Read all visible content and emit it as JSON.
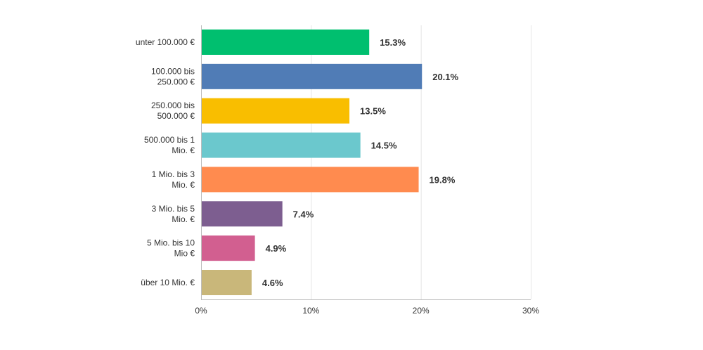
{
  "chart_data": {
    "type": "bar",
    "orientation": "horizontal",
    "categories": [
      [
        "unter 100.000 €"
      ],
      [
        "100.000 bis",
        "250.000 €"
      ],
      [
        "250.000 bis",
        "500.000 €"
      ],
      [
        "500.000 bis 1",
        "Mio. €"
      ],
      [
        "1 Mio. bis 3",
        "Mio. €"
      ],
      [
        "3 Mio. bis 5",
        "Mio. €"
      ],
      [
        "5 Mio. bis 10",
        "Mio €"
      ],
      [
        "über 10 Mio. €"
      ]
    ],
    "values": [
      15.3,
      20.1,
      13.5,
      14.5,
      19.8,
      7.4,
      4.9,
      4.6
    ],
    "value_labels": [
      "15.3%",
      "20.1%",
      "13.5%",
      "14.5%",
      "19.8%",
      "7.4%",
      "4.9%",
      "4.6%"
    ],
    "colors": [
      "#00bf6f",
      "#507cb6",
      "#f9be00",
      "#6bc8cd",
      "#ff8b4f",
      "#7d5e90",
      "#d25f90",
      "#c9b77a"
    ],
    "xlim": [
      0,
      30
    ],
    "xticks": [
      0,
      10,
      20,
      30
    ],
    "xtick_labels": [
      "0%",
      "10%",
      "20%",
      "30%"
    ],
    "grid": true,
    "title": "",
    "xlabel": "",
    "ylabel": ""
  }
}
